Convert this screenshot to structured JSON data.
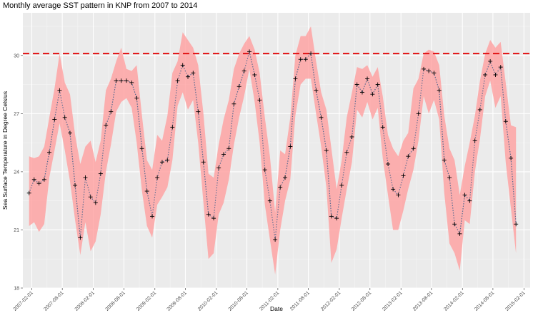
{
  "chart_data": {
    "type": "line",
    "title": "Monthly average SST pattern in KNP from 2007 to 2014",
    "xlabel": "Date",
    "ylabel": "Sea Surface Temperature in Degree Celsius",
    "ylim": [
      18,
      32.2
    ],
    "y_ticks": [
      18,
      21,
      24,
      27,
      30
    ],
    "x_ticks": [
      "2007-02-01",
      "2007-08-01",
      "2008-02-01",
      "2008-08-01",
      "2009-02-01",
      "2009-08-01",
      "2010-02-01",
      "2010-08-01",
      "2011-02-01",
      "2011-08-01",
      "2012-02-01",
      "2012-08-01",
      "2013-02-01",
      "2013-08-01",
      "2014-02-01",
      "2014-08-01",
      "2015-02-01"
    ],
    "x_range": [
      "2006-12-10",
      "2015-03-10"
    ],
    "threshold": {
      "value": 30.1,
      "style": "dashed",
      "color": "#e31a1c"
    },
    "colors": {
      "band": "#ff9f9f",
      "panel": "#ebebeb",
      "grid": "#ffffff",
      "points": "#000000",
      "line": "#5a6a90"
    },
    "grid": true,
    "legend": "none",
    "series": [
      {
        "x": [
          "2007-01-16",
          "2007-02-15",
          "2007-03-16",
          "2007-04-16",
          "2007-05-16",
          "2007-06-16",
          "2007-07-16",
          "2007-08-16",
          "2007-09-16",
          "2007-10-16",
          "2007-11-16",
          "2007-12-16",
          "2008-01-16",
          "2008-02-15",
          "2008-03-16",
          "2008-04-16",
          "2008-05-16",
          "2008-06-16",
          "2008-07-16",
          "2008-08-16",
          "2008-09-16",
          "2008-10-16",
          "2008-11-16",
          "2008-12-16",
          "2009-01-16",
          "2009-02-15",
          "2009-03-16",
          "2009-04-16",
          "2009-05-16",
          "2009-06-16",
          "2009-07-16",
          "2009-08-16",
          "2009-09-16",
          "2009-10-16",
          "2009-11-16",
          "2009-12-16",
          "2010-01-16",
          "2010-02-15",
          "2010-03-16",
          "2010-04-16",
          "2010-05-16",
          "2010-06-16",
          "2010-07-16",
          "2010-08-16",
          "2010-09-16",
          "2010-10-16",
          "2010-11-16",
          "2010-12-16",
          "2011-01-16",
          "2011-02-15",
          "2011-03-16",
          "2011-04-16",
          "2011-05-16",
          "2011-06-16",
          "2011-07-16",
          "2011-08-16",
          "2011-09-16",
          "2011-10-16",
          "2011-11-16",
          "2011-12-16",
          "2012-01-16",
          "2012-02-15",
          "2012-03-16",
          "2012-04-16",
          "2012-05-16",
          "2012-06-16",
          "2012-07-16",
          "2012-08-16",
          "2012-09-16",
          "2012-10-16",
          "2012-11-16",
          "2012-12-16",
          "2013-01-16",
          "2013-02-15",
          "2013-03-16",
          "2013-04-16",
          "2013-05-16",
          "2013-06-16",
          "2013-07-16",
          "2013-08-16",
          "2013-09-16",
          "2013-10-16",
          "2013-11-16",
          "2013-12-16",
          "2014-01-16",
          "2014-02-15",
          "2014-03-16",
          "2014-04-16",
          "2014-05-16",
          "2014-06-16",
          "2014-07-16",
          "2014-08-16",
          "2014-09-16",
          "2014-10-16",
          "2014-11-16",
          "2014-12-16"
        ],
        "mean": [
          22.9,
          23.6,
          23.4,
          23.6,
          25.0,
          26.7,
          28.2,
          26.8,
          26.0,
          23.3,
          20.6,
          23.7,
          22.7,
          22.4,
          23.9,
          26.4,
          27.1,
          28.7,
          28.7,
          28.7,
          28.6,
          27.8,
          25.2,
          23.0,
          21.7,
          23.7,
          24.5,
          24.6,
          26.3,
          28.7,
          29.5,
          28.9,
          29.1,
          27.1,
          24.5,
          21.8,
          21.6,
          24.2,
          24.9,
          25.2,
          27.5,
          28.4,
          29.2,
          30.2,
          29.0,
          27.7,
          24.1,
          22.5,
          20.5,
          23.2,
          23.7,
          25.3,
          28.8,
          29.8,
          29.8,
          30.1,
          28.2,
          26.8,
          25.1,
          21.7,
          21.6,
          23.3,
          25.0,
          25.8,
          28.5,
          28.1,
          28.8,
          28.0,
          28.5,
          26.3,
          24.4,
          23.1,
          22.8,
          23.8,
          24.8,
          25.2,
          27.0,
          29.3,
          29.2,
          29.1,
          28.2,
          24.6,
          23.7,
          21.3,
          20.8,
          22.8,
          22.5,
          25.6,
          27.2,
          29.0,
          29.7,
          29.0,
          29.4,
          26.6,
          24.7,
          21.3
        ],
        "upper": [
          24.8,
          24.7,
          24.8,
          25.3,
          26.8,
          28.3,
          30.1,
          28.6,
          28.0,
          25.9,
          24.4,
          25.3,
          25.6,
          24.5,
          25.6,
          28.2,
          28.8,
          29.7,
          30.4,
          29.3,
          29.2,
          29.5,
          26.9,
          24.6,
          24.1,
          25.9,
          25.6,
          26.9,
          29.1,
          29.7,
          31.2,
          30.8,
          30.4,
          29.5,
          27.0,
          23.9,
          23.7,
          25.4,
          26.7,
          27.7,
          29.3,
          30.1,
          30.6,
          31.0,
          30.3,
          29.1,
          26.8,
          24.8,
          21.9,
          25.1,
          24.9,
          26.8,
          30.0,
          31.0,
          31.0,
          31.5,
          29.7,
          28.1,
          27.2,
          25.2,
          23.1,
          24.6,
          26.8,
          28.1,
          29.4,
          29.3,
          29.5,
          28.9,
          29.4,
          27.9,
          25.9,
          25.2,
          24.8,
          25.6,
          26.0,
          28.3,
          28.8,
          30.1,
          30.3,
          30.2,
          29.5,
          26.9,
          25.2,
          24.6,
          22.8,
          24.3,
          25.5,
          26.9,
          28.7,
          30.1,
          30.8,
          30.4,
          30.7,
          28.6,
          26.4,
          26.3
        ],
        "lower": [
          21.2,
          21.4,
          20.9,
          21.3,
          23.7,
          25.1,
          26.5,
          25.1,
          23.5,
          21.5,
          19.7,
          21.4,
          19.9,
          20.4,
          21.8,
          24.0,
          25.4,
          27.1,
          27.6,
          27.8,
          27.3,
          25.5,
          23.0,
          21.2,
          20.6,
          22.3,
          22.7,
          23.2,
          24.6,
          27.4,
          28.1,
          27.2,
          27.7,
          25.5,
          22.4,
          19.5,
          19.8,
          21.8,
          22.4,
          23.6,
          25.4,
          26.8,
          27.9,
          29.3,
          27.6,
          25.5,
          22.3,
          20.5,
          18.7,
          21.0,
          22.5,
          23.6,
          26.9,
          28.5,
          28.8,
          28.8,
          27.0,
          25.3,
          23.2,
          19.3,
          20.0,
          21.6,
          23.1,
          24.5,
          27.2,
          26.8,
          27.6,
          26.7,
          27.3,
          24.7,
          22.8,
          21.0,
          21.0,
          22.0,
          23.1,
          24.1,
          25.6,
          27.9,
          27.0,
          27.7,
          26.7,
          22.9,
          20.3,
          19.8,
          18.9,
          21.5,
          21.3,
          24.0,
          25.7,
          27.9,
          28.7,
          27.3,
          27.9,
          24.5,
          22.1,
          19.8
        ]
      }
    ]
  }
}
